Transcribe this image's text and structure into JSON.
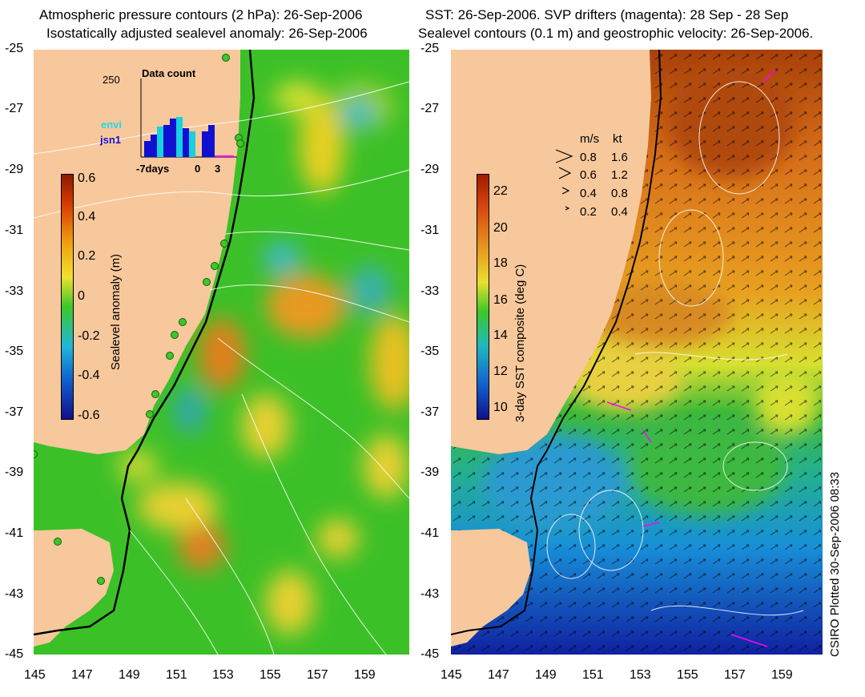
{
  "left_panel": {
    "title_line1": "Atmospheric pressure contours (2 hPa): 26-Sep-2006",
    "title_line2": "Isostatically adjusted sealevel anomaly: 26-Sep-2006",
    "colorbar_label": "Sealevel anomaly (m)",
    "colorbar_ticks": [
      "0.6",
      "0.4",
      "0.2",
      "0",
      "-0.2",
      "-0.4",
      "-0.6"
    ],
    "inset": {
      "title": "Data count",
      "ymax_label": "250",
      "legend_envi": "envi",
      "legend_jsn1": "jsn1",
      "x_label_left": "-7days",
      "x_label_mid": "0",
      "x_label_right": "3"
    }
  },
  "right_panel": {
    "title_line1": "SST: 26-Sep-2006. SVP drifters (magenta): 28 Sep - 28 Sep",
    "title_line2": "Sealevel contours (0.1 m) and geostrophic velocity: 26-Sep-2006.",
    "colorbar_label": "3-day SST composite (deg C)",
    "colorbar_ticks": [
      "22",
      "20",
      "18",
      "16",
      "14",
      "12",
      "10"
    ],
    "velocity_legend": {
      "header_ms": "m/s",
      "header_kt": "kt",
      "rows": [
        {
          "ms": "0.8",
          "kt": "1.6"
        },
        {
          "ms": "0.6",
          "kt": "1.2"
        },
        {
          "ms": "0.4",
          "kt": "0.8"
        },
        {
          "ms": "0.2",
          "kt": "0.4"
        }
      ]
    }
  },
  "lat_ticks": [
    "-25",
    "-27",
    "-29",
    "-31",
    "-33",
    "-35",
    "-37",
    "-39",
    "-41",
    "-43",
    "-45"
  ],
  "lon_ticks": [
    "145",
    "147",
    "149",
    "151",
    "153",
    "155",
    "157",
    "159"
  ],
  "credit": "CSIRO Plotted 30-Sep-2006 08:33",
  "colors": {
    "land": "#f7c89b",
    "ocean_green": "#46c82a",
    "sla_positive": "#f0c020",
    "sla_negative": "#2aa0d0",
    "sst_warm": "#e0801a",
    "sst_cool": "#1a78d0",
    "drifter": "#ff00ff"
  }
}
